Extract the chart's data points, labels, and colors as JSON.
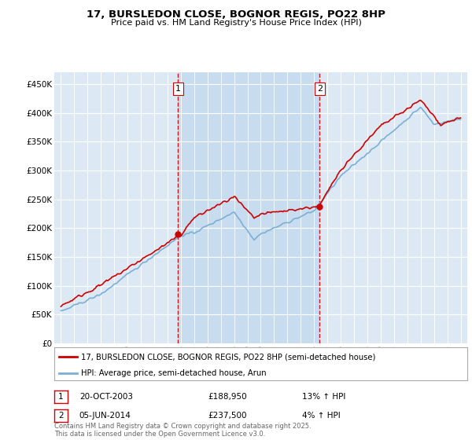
{
  "title": "17, BURSLEDON CLOSE, BOGNOR REGIS, PO22 8HP",
  "subtitle": "Price paid vs. HM Land Registry's House Price Index (HPI)",
  "property_label": "17, BURSLEDON CLOSE, BOGNOR REGIS, PO22 8HP (semi-detached house)",
  "hpi_label": "HPI: Average price, semi-detached house, Arun",
  "footnote": "Contains HM Land Registry data © Crown copyright and database right 2025.\nThis data is licensed under the Open Government Licence v3.0.",
  "transaction1": {
    "num": "1",
    "date": "20-OCT-2003",
    "price": "£188,950",
    "pct": "13% ↑ HPI"
  },
  "transaction2": {
    "num": "2",
    "date": "05-JUN-2014",
    "price": "£237,500",
    "pct": "4% ↑ HPI"
  },
  "vline1_x": 2003.79,
  "vline2_x": 2014.42,
  "ylim": [
    0,
    470000
  ],
  "xlim": [
    1994.5,
    2025.5
  ],
  "background_color": "#dce9f5",
  "shade_color": "#c8dcf0",
  "grid_color": "#ffffff",
  "red_line_color": "#cc0000",
  "blue_line_color": "#7bafd4",
  "vline_color": "#cc0000",
  "marker_color": "#cc0000"
}
